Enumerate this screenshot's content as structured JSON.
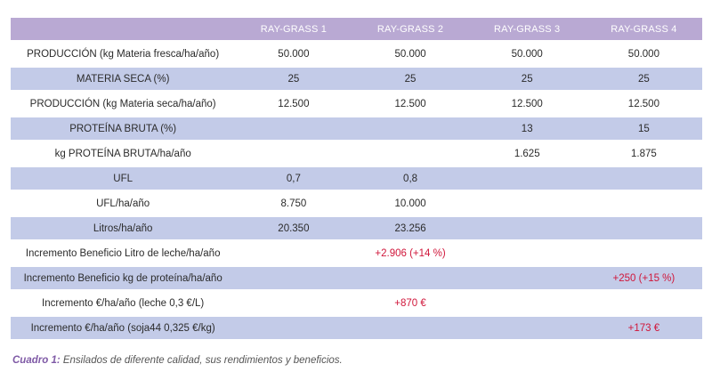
{
  "table": {
    "columns": [
      "RAY-GRASS 1",
      "RAY-GRASS 2",
      "RAY-GRASS 3",
      "RAY-GRASS 4"
    ],
    "rows": [
      {
        "label": "PRODUCCIÓN (kg Materia fresca/ha/año)",
        "values": [
          "50.000",
          "50.000",
          "50.000",
          "50.000"
        ]
      },
      {
        "label": "MATERIA SECA (%)",
        "values": [
          "25",
          "25",
          "25",
          "25"
        ]
      },
      {
        "label": "PRODUCCIÓN (kg Materia seca/ha/año)",
        "values": [
          "12.500",
          "12.500",
          "12.500",
          "12.500"
        ]
      },
      {
        "label": "PROTEÍNA BRUTA (%)",
        "values": [
          "",
          "",
          "13",
          "15"
        ]
      },
      {
        "label": "kg PROTEÍNA BRUTA/ha/año",
        "values": [
          "",
          "",
          "1.625",
          "1.875"
        ]
      },
      {
        "label": "UFL",
        "values": [
          "0,7",
          "0,8",
          "",
          ""
        ]
      },
      {
        "label": "UFL/ha/año",
        "values": [
          "8.750",
          "10.000",
          "",
          ""
        ]
      },
      {
        "label": "Litros/ha/año",
        "values": [
          "20.350",
          "23.256",
          "",
          ""
        ]
      },
      {
        "label": "Incremento Beneficio Litro de leche/ha/año",
        "values": [
          "",
          "+2.906 (+14 %)",
          "",
          ""
        ]
      },
      {
        "label": "Incremento Beneficio kg de proteína/ha/año",
        "values": [
          "",
          "",
          "",
          "+250 (+15 %)"
        ]
      },
      {
        "label": "Incremento €/ha/año (leche 0,3 €/L)",
        "values": [
          "",
          "+870 €",
          "",
          ""
        ]
      },
      {
        "label": "Incremento €/ha/año (soja44 0,325 €/kg)",
        "values": [
          "",
          "",
          "",
          "+173 €"
        ]
      }
    ],
    "highlight_color": "#d0163a"
  },
  "caption": {
    "number": "Cuadro 1:",
    "text": " Ensilados de diferente calidad, sus rendimientos y beneficios."
  }
}
